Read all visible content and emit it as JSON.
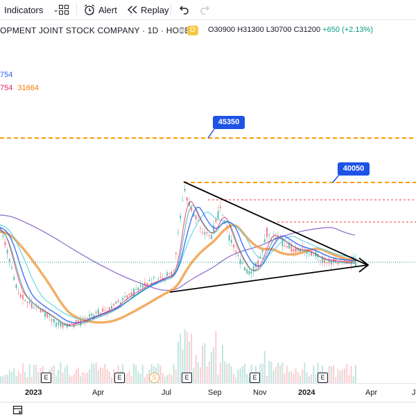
{
  "toolbar": {
    "indicators_label": "Indicators",
    "alert_label": "Alert",
    "replay_label": "Replay"
  },
  "legend": {
    "title": "OPMENT JOINT STOCK COMPANY · 1D · HOSE",
    "interval_badge": "D",
    "open": "O30900",
    "high": "H31300",
    "low": "L30700",
    "close": "C31200",
    "change": "+650 (+2.13%)",
    "ind1_value": "754",
    "ind2_value_a": "754",
    "ind2_value_b": "31664"
  },
  "price_labels": {
    "level1": "45350",
    "level2": "40050"
  },
  "xaxis": {
    "labels": [
      "2023",
      "Apr",
      "Jul",
      "Sep",
      "Nov",
      "2024",
      "Apr",
      "J"
    ]
  },
  "events": {
    "earnings": "E",
    "split": "S"
  },
  "colors": {
    "accent": "#1e53e5",
    "level_line": "#ff9800",
    "resistance": "#f23645",
    "ma_orange": "#f0a04b",
    "ma_purple": "#7e57c2",
    "ma_blue": "#2962ff",
    "ma_cyan": "#4dd0e1",
    "ma_pink": "#e91e63",
    "ma_green": "#26a69a",
    "candle_up": "#089981",
    "candle_down": "#f23645"
  },
  "chart_data": {
    "type": "candlestick",
    "horizontal_levels": [
      45350,
      40050
    ],
    "close": 31200
  }
}
